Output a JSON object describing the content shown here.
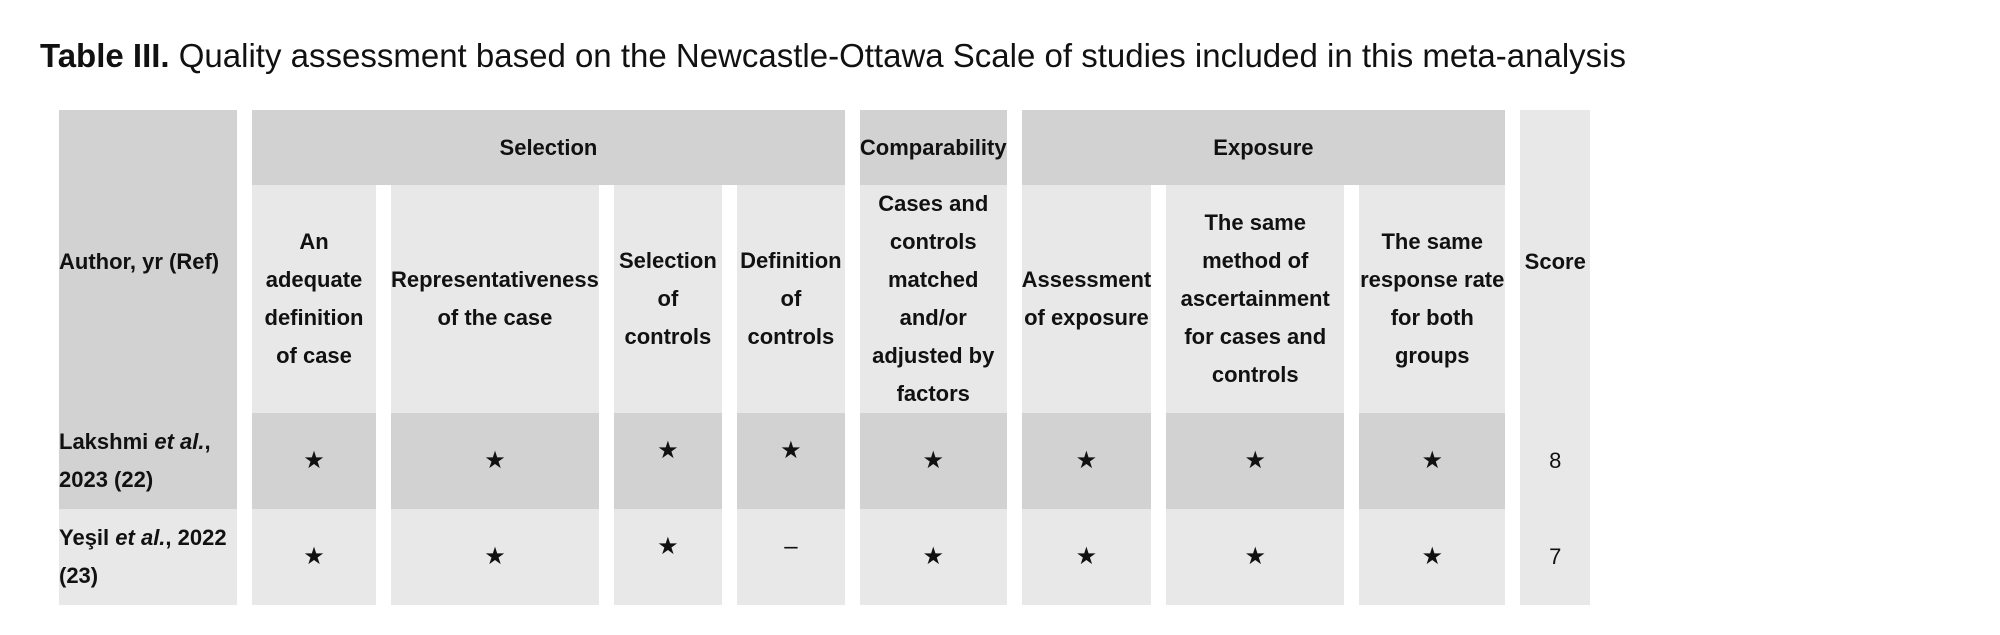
{
  "caption": {
    "label": "Table III.",
    "text": "Quality assessment based on the Newcastle-Ottawa Scale of studies included in this meta-analysis"
  },
  "groups": {
    "selection": "Selection",
    "comparability": "Comparability",
    "exposure": "Exposure"
  },
  "columns": {
    "author": "Author, yr (Ref)",
    "adequate_definition": "An adequate definition of case",
    "representativeness": "Representativeness of the case",
    "selection_of_controls": "Selection of controls",
    "definition_of_controls": "Definition of controls",
    "cases_controls_matched": "Cases and controls matched and/or adjusted by factors",
    "assessment_of_exposure": "Assessment of exposure",
    "same_method": "The same method of ascertainment for cases and controls",
    "same_response_rate": "The same response rate for both groups",
    "score": "Score"
  },
  "rows": [
    {
      "author_pre": "Lakshmi ",
      "author_etal": "et al.",
      "author_post": ", 2023 (22)",
      "cells": [
        "★",
        "★",
        "★",
        "★",
        "★",
        "★",
        "★",
        "★"
      ],
      "score": "8"
    },
    {
      "author_pre": "Yeşil ",
      "author_etal": "et al.",
      "author_post": ", 2022 (23)",
      "cells": [
        "★",
        "★",
        "★",
        "–",
        "★",
        "★",
        "★",
        "★"
      ],
      "score": "7"
    }
  ]
}
